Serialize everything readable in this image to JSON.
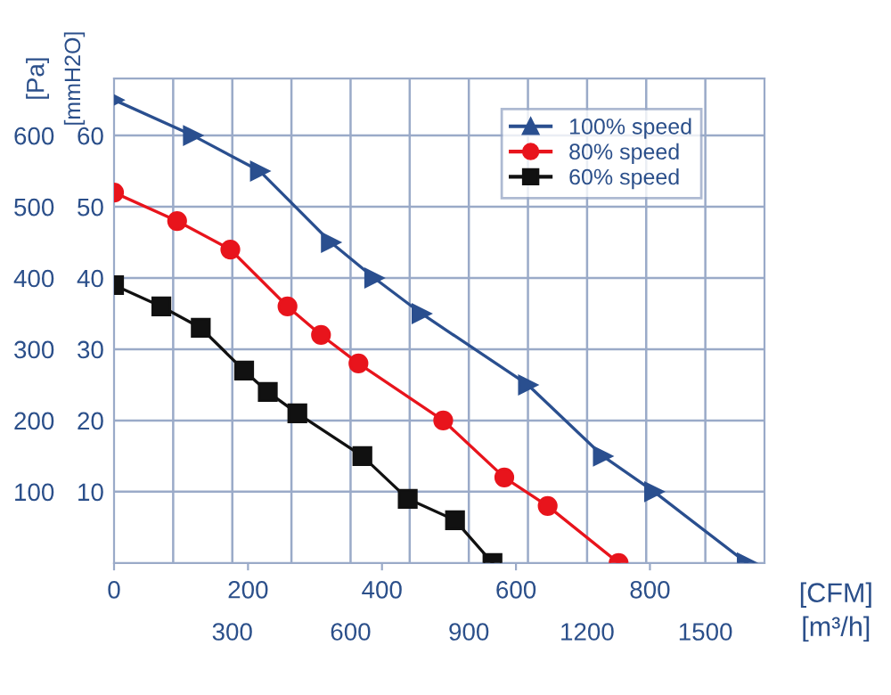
{
  "chart_data": {
    "type": "line",
    "xlabel": "[m³/h]",
    "ylabel": "[Pa]",
    "x2label": "[CFM]",
    "y2label": "[mmH2O]",
    "xlim": [
      0,
      1650
    ],
    "xticks": [
      {
        "value": 150,
        "label": null
      },
      300,
      {
        "value": 450,
        "label": null
      },
      600,
      {
        "value": 750,
        "label": null
      },
      900,
      {
        "value": 1050,
        "label": null
      },
      1200,
      {
        "value": 1350,
        "label": null
      },
      1500
    ],
    "x2lim": [
      0,
      971
    ],
    "x2ticks": [
      0,
      200,
      400,
      600,
      800
    ],
    "ylim": [
      0,
      680
    ],
    "yticks": [
      100,
      200,
      300,
      400,
      500,
      600
    ],
    "y2lim": [
      0,
      68
    ],
    "y2ticks": [
      10,
      20,
      30,
      40,
      50,
      60
    ],
    "grid": true,
    "legend": "top right",
    "line_style": "solid",
    "series": [
      {
        "name": "100% speed",
        "color": "#2a4f8f",
        "marker": "triangle",
        "x": [
          0,
          200,
          370,
          550,
          660,
          780,
          1050,
          1240,
          1370,
          1605
        ],
        "values": [
          650,
          600,
          550,
          450,
          400,
          350,
          250,
          150,
          100,
          0
        ]
      },
      {
        "name": "80% speed",
        "color": "#e8141c",
        "marker": "circle",
        "x": [
          0,
          160,
          295,
          440,
          525,
          620,
          835,
          990,
          1100,
          1280
        ],
        "values": [
          520,
          480,
          440,
          360,
          320,
          280,
          200,
          120,
          80,
          0
        ]
      },
      {
        "name": "60% speed",
        "color": "#111111",
        "marker": "square",
        "x": [
          0,
          120,
          220,
          330,
          390,
          465,
          630,
          745,
          865,
          960
        ],
        "values": [
          390,
          360,
          330,
          270,
          240,
          210,
          150,
          90,
          60,
          0
        ]
      }
    ]
  }
}
